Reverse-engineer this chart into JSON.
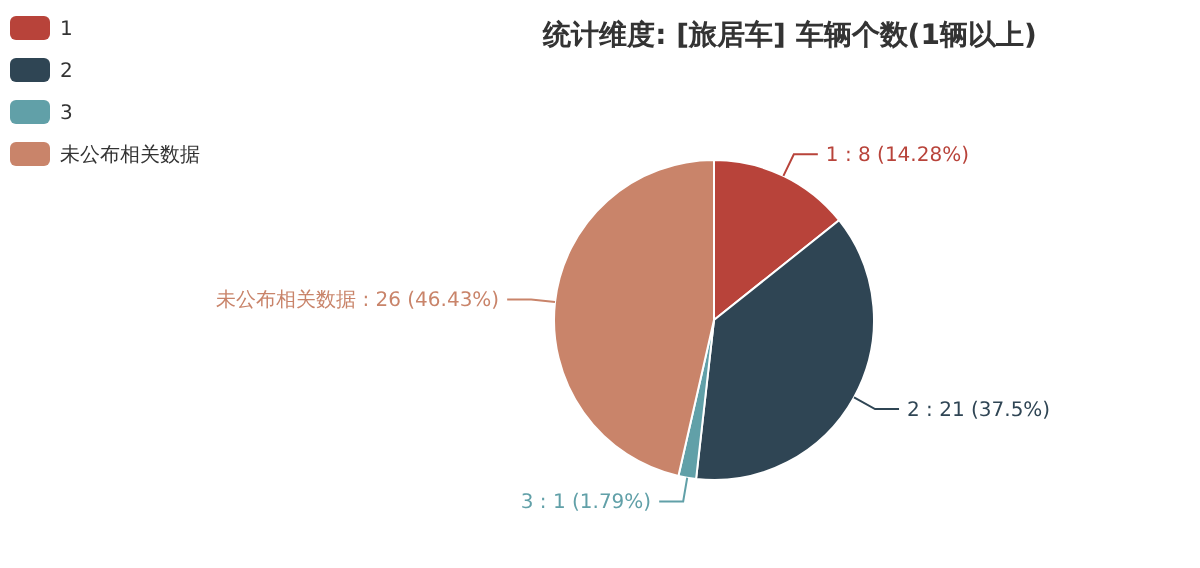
{
  "chart_data": {
    "type": "pie",
    "title": "统计维度: [旅居车] 车辆个数(1辆以上)",
    "categories": [
      "1",
      "2",
      "3",
      "未公布相关数据"
    ],
    "values": [
      8,
      21,
      1,
      26
    ],
    "colors": [
      "#b8433a",
      "#2f4554",
      "#61a0a8",
      "#c9846a"
    ],
    "value_labels": [
      "1 : 8 (14.28%)",
      "2 : 21 (37.5%)",
      "3 : 1 (1.79%)",
      "未公布相关数据 : 26 (46.43%)"
    ],
    "legend": "top left"
  }
}
